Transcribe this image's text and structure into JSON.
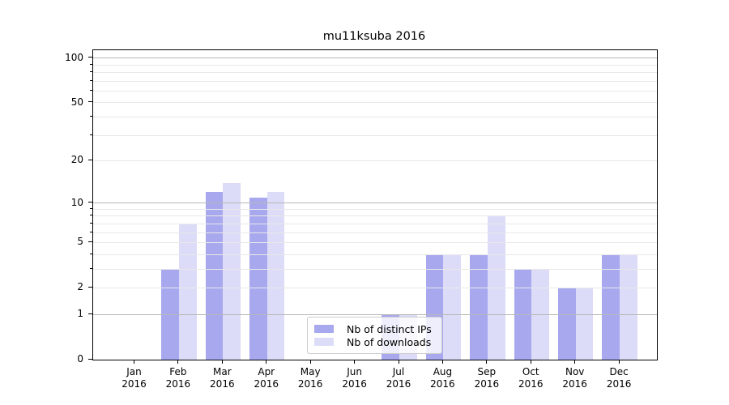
{
  "chart_data": {
    "type": "bar",
    "title": "mu11ksuba 2016",
    "categories": [
      "Jan",
      "Feb",
      "Mar",
      "Apr",
      "May",
      "Jun",
      "Jul",
      "Aug",
      "Sep",
      "Oct",
      "Nov",
      "Dec"
    ],
    "x_tick_year": "2016",
    "series": [
      {
        "name": "Nb of distinct IPs",
        "color": "#a8a8ef",
        "values": [
          0,
          3,
          12,
          11,
          0,
          0,
          1,
          4,
          4,
          3,
          2,
          4
        ]
      },
      {
        "name": "Nb of downloads",
        "color": "#dcdcf8",
        "values": [
          0,
          7,
          14,
          12,
          0,
          0,
          1,
          4,
          8,
          3,
          2,
          4
        ]
      }
    ],
    "y_ticks": [
      0,
      1,
      2,
      5,
      10,
      20,
      50,
      100
    ],
    "scale": "log10(1+y)",
    "ylim": [
      0,
      113
    ],
    "grid": true,
    "grid_major_values": [
      1,
      10,
      100
    ],
    "grid_major_color": "#b7b7b7",
    "grid_minor_color": "#e8e8e8",
    "legend_position": "lower-center",
    "axis_color": "#000000",
    "background_color": "#ffffff"
  }
}
